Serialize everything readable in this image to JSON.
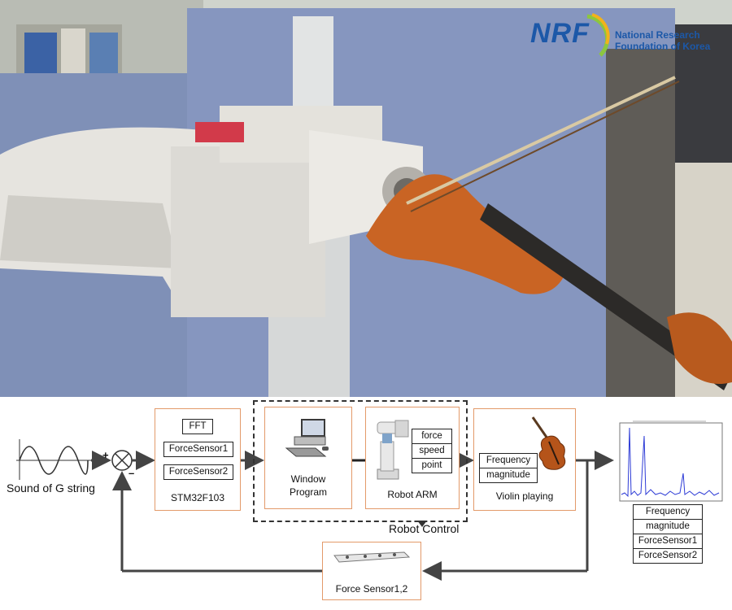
{
  "header_logo": {
    "mark": "NRF",
    "org_line1": "National Research",
    "org_line2": "Foundation of Korea"
  },
  "input": {
    "label": "Sound of G string",
    "plus": "+",
    "minus": "–"
  },
  "stm_block": {
    "title": "STM32F103",
    "items": [
      "FFT",
      "ForceSensor1",
      "ForceSensor2"
    ]
  },
  "window_block": {
    "title_line1": "Window",
    "title_line2": "Program"
  },
  "robot_block": {
    "title": "Robot ARM",
    "items": [
      "force",
      "speed",
      "point"
    ]
  },
  "robot_control_label": "Robot Control",
  "violin_block": {
    "title": "Violin playing",
    "items": [
      "Frequency",
      "magnitude"
    ]
  },
  "output_list": {
    "items": [
      "Frequency",
      "magnitude",
      "ForceSensor1",
      "ForceSensor2"
    ]
  },
  "feedback_block": {
    "title": "Force Sensor1,2"
  },
  "colors": {
    "box_border": "#e39a6a",
    "nrf_blue": "#1c58a8",
    "spectrum": "#2d3bd6"
  }
}
